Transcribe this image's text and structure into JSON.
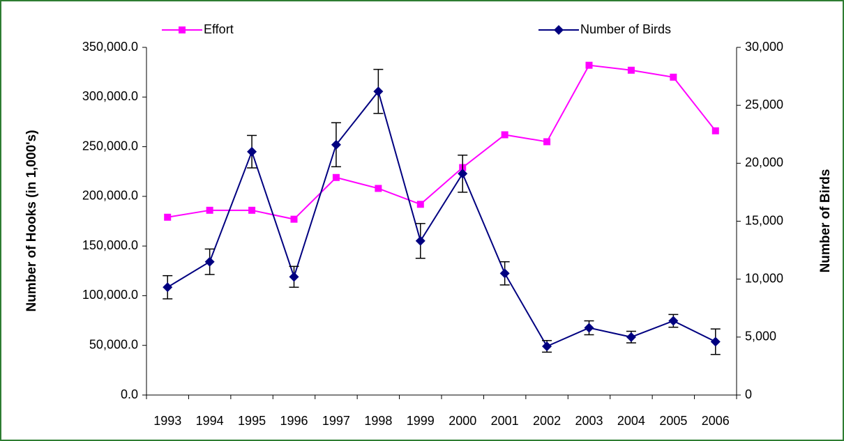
{
  "chart_data": {
    "type": "line",
    "y_label": "Number of Hooks (in 1,000's)",
    "y2_label": "Number of Birds",
    "categories": [
      "1993",
      "1994",
      "1995",
      "1996",
      "1997",
      "1998",
      "1999",
      "2000",
      "2001",
      "2002",
      "2003",
      "2004",
      "2005",
      "2006"
    ],
    "legend": "top",
    "grid": false,
    "ylim": [
      0,
      350000
    ],
    "yticks": [
      {
        "value": 0,
        "label": "0.0"
      },
      {
        "value": 50000,
        "label": "50,000.0"
      },
      {
        "value": 100000,
        "label": "100,000.0"
      },
      {
        "value": 150000,
        "label": "150,000.0"
      },
      {
        "value": 200000,
        "label": "200,000.0"
      },
      {
        "value": 250000,
        "label": "250,000.0"
      },
      {
        "value": 300000,
        "label": "300,000.0"
      },
      {
        "value": 350000,
        "label": "350,000.0"
      }
    ],
    "y2lim": [
      0,
      30000
    ],
    "y2ticks": [
      0,
      {
        "value": 5000,
        "label": "5,000"
      },
      {
        "value": 10000,
        "label": "10,000"
      },
      {
        "value": 15000,
        "label": "15,000"
      },
      {
        "value": 20000,
        "label": "20,000"
      },
      {
        "value": 25000,
        "label": "25,000"
      },
      {
        "value": 30000,
        "label": "30,000"
      }
    ],
    "series": [
      {
        "name": "Effort",
        "color": "#ff00ff",
        "marker": "square",
        "values": [
          179000,
          186000,
          186000,
          177000,
          219000,
          208000,
          192000,
          229000,
          262000,
          255000,
          332000,
          327000,
          320000,
          266000
        ]
      },
      {
        "name": "Number of Birds",
        "color": "#000080",
        "marker": "diamond",
        "axis": "y2",
        "values": [
          9300,
          11500,
          21000,
          10200,
          21600,
          26200,
          13300,
          19100,
          10500,
          4200,
          5800,
          5000,
          6400,
          4600
        ],
        "errors": [
          1000,
          1100,
          1400,
          900,
          1900,
          1900,
          1500,
          1600,
          1000,
          500,
          600,
          500,
          550,
          1100
        ]
      }
    ]
  }
}
